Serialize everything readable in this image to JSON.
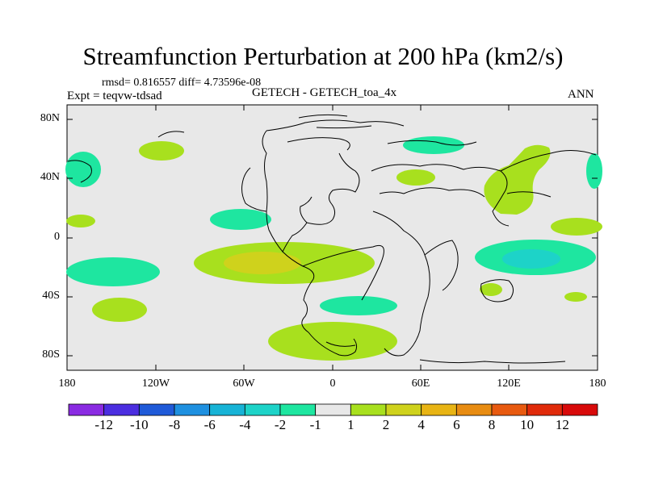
{
  "header": {
    "title": "Streamfunction Perturbation at 200 hPa (km2/s)",
    "stats": "rmsd= 0.816557 diff= 4.73596e-08",
    "experiment": "Expt = teqvw-tdsad",
    "case": "GETECH - GETECH_toa_4x",
    "season": "ANN"
  },
  "axes": {
    "y_ticks": [
      "80N",
      "40N",
      "0",
      "40S",
      "80S"
    ],
    "x_ticks": [
      "180",
      "120W",
      "60W",
      "0",
      "60E",
      "120E",
      "180"
    ]
  },
  "colorbar": {
    "labels": [
      "-12",
      "-10",
      "-8",
      "-6",
      "-4",
      "-2",
      "-1",
      "1",
      "2",
      "4",
      "6",
      "8",
      "10",
      "12"
    ],
    "colors": [
      "#8a2be2",
      "#4b2ee0",
      "#1f5ad8",
      "#1e90e0",
      "#17b3d6",
      "#1dd3c8",
      "#1ee6a0",
      "#e8e8e8",
      "#a8e01e",
      "#cfd21c",
      "#e8b414",
      "#e88c12",
      "#e85a10",
      "#e02a0a",
      "#d80a0a"
    ]
  },
  "map": {
    "background": "#e8e8e8",
    "coast": "#000000"
  }
}
